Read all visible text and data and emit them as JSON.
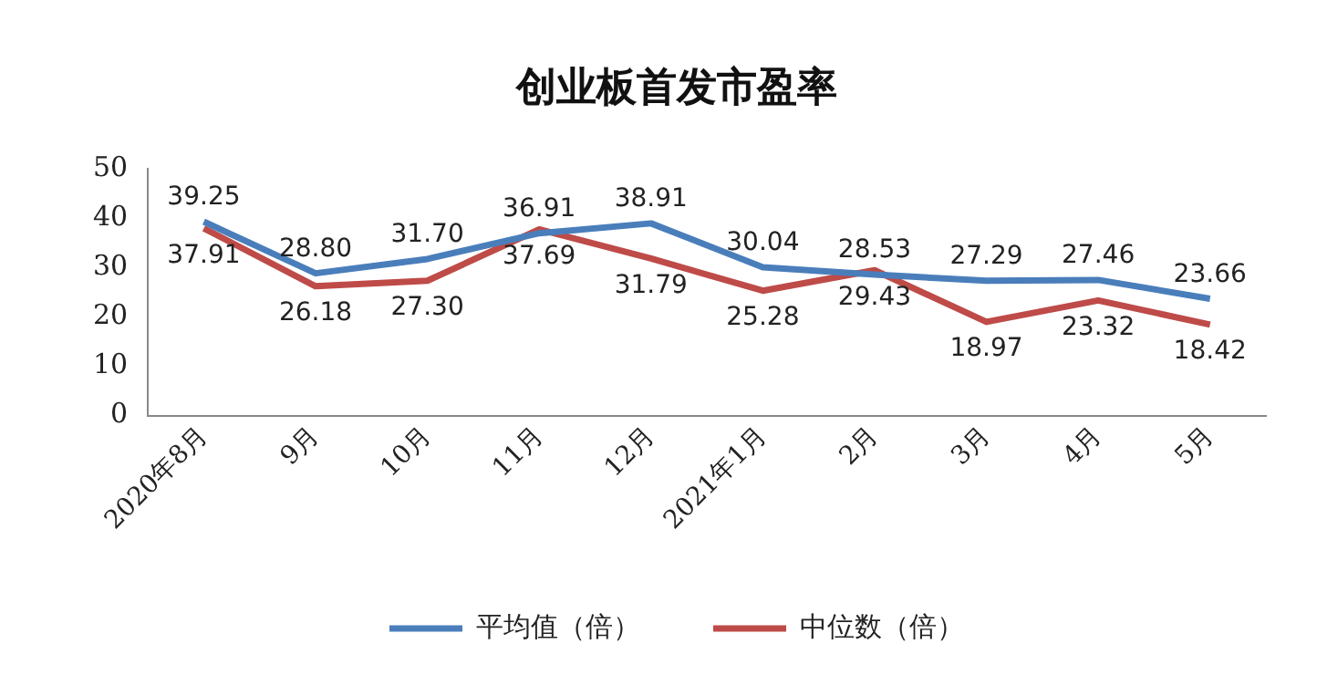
{
  "chart_data": {
    "type": "line",
    "title": "创业板首发市盈率",
    "categories": [
      "2020年8月",
      "9月",
      "10月",
      "11月",
      "12月",
      "2021年1月",
      "2月",
      "3月",
      "4月",
      "5月"
    ],
    "series": [
      {
        "name": "平均值（倍）",
        "color": "#4a7ebb",
        "values": [
          39.25,
          28.8,
          31.7,
          36.91,
          38.91,
          30.04,
          28.53,
          27.29,
          27.46,
          23.66
        ],
        "value_labels": [
          "39.25",
          "28.80",
          "31.70",
          "36.91",
          "38.91",
          "30.04",
          "28.53",
          "27.29",
          "27.46",
          "23.66"
        ]
      },
      {
        "name": "中位数（倍）",
        "color": "#be4b48",
        "values": [
          37.91,
          26.18,
          27.3,
          37.69,
          31.79,
          25.28,
          29.43,
          18.97,
          23.32,
          18.42
        ],
        "value_labels": [
          "37.91",
          "26.18",
          "27.30",
          "37.69",
          "31.79",
          "25.28",
          "29.43",
          "18.97",
          "23.32",
          "18.42"
        ]
      }
    ],
    "ylim": [
      0,
      50
    ],
    "yticks": [
      0,
      10,
      20,
      30,
      40,
      50
    ],
    "grid": false,
    "legend": "bottom",
    "marker": "none",
    "line_style": "solid"
  }
}
